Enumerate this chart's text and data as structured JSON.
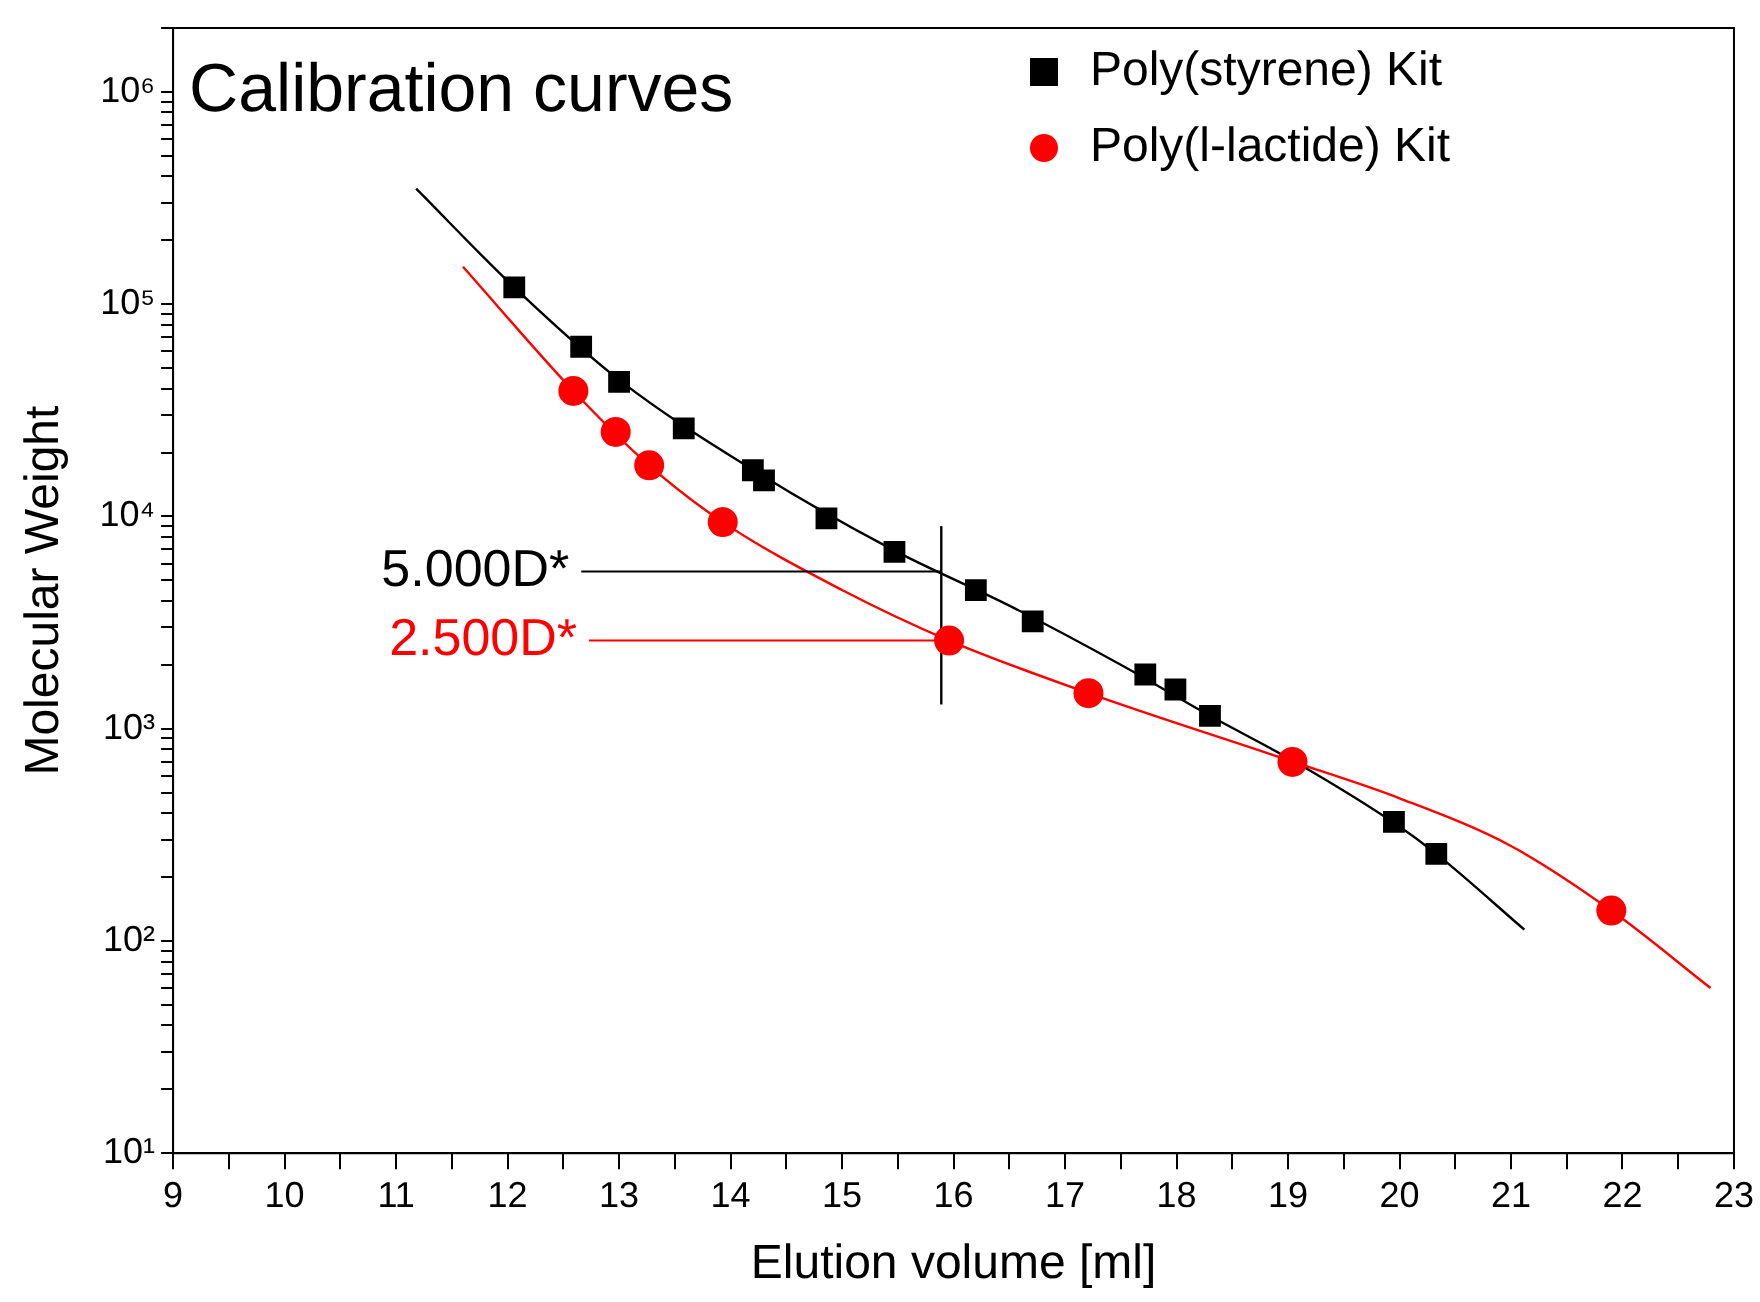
{
  "chart_data": {
    "type": "scatter",
    "title": "Calibration curves",
    "xlabel": "Elution volume [ml]",
    "ylabel": "Molecular Weight",
    "xlim": [
      9,
      23
    ],
    "xticks": [
      9,
      {
        "value": 9.5,
        "label": null
      },
      10,
      {
        "value": 10.5,
        "label": null
      },
      11,
      {
        "value": 11.5,
        "label": null
      },
      12,
      {
        "value": 12.5,
        "label": null
      },
      13,
      {
        "value": 13.5,
        "label": null
      },
      14,
      {
        "value": 14.5,
        "label": null
      },
      15,
      {
        "value": 15.5,
        "label": null
      },
      16,
      {
        "value": 16.5,
        "label": null
      },
      17,
      {
        "value": 17.5,
        "label": null
      },
      18,
      {
        "value": 18.5,
        "label": null
      },
      19,
      {
        "value": 19.5,
        "label": null
      },
      20,
      {
        "value": 20.5,
        "label": null
      },
      21,
      {
        "value": 21.5,
        "label": null
      },
      22,
      {
        "value": 22.5,
        "label": null
      },
      23
    ],
    "ylim": [
      10,
      2000000
    ],
    "yticks": [
      {
        "value": 10,
        "label": "10¹"
      },
      {
        "value": 20,
        "label": null
      },
      {
        "value": 30,
        "label": null
      },
      {
        "value": 40,
        "label": null
      },
      {
        "value": 50,
        "label": null
      },
      {
        "value": 60,
        "label": null
      },
      {
        "value": 70,
        "label": null
      },
      {
        "value": 80,
        "label": null
      },
      {
        "value": 90,
        "label": null
      },
      {
        "value": 100,
        "label": "10²"
      },
      {
        "value": 200,
        "label": null
      },
      {
        "value": 300,
        "label": null
      },
      {
        "value": 400,
        "label": null
      },
      {
        "value": 500,
        "label": null
      },
      {
        "value": 600,
        "label": null
      },
      {
        "value": 700,
        "label": null
      },
      {
        "value": 800,
        "label": null
      },
      {
        "value": 900,
        "label": null
      },
      {
        "value": 1000,
        "label": "10³"
      },
      {
        "value": 2000,
        "label": null
      },
      {
        "value": 3000,
        "label": null
      },
      {
        "value": 4000,
        "label": null
      },
      {
        "value": 5000,
        "label": null
      },
      {
        "value": 6000,
        "label": null
      },
      {
        "value": 7000,
        "label": null
      },
      {
        "value": 8000,
        "label": null
      },
      {
        "value": 9000,
        "label": null
      },
      {
        "value": 10000,
        "label": "10⁴"
      },
      {
        "value": 20000,
        "label": null
      },
      {
        "value": 30000,
        "label": null
      },
      {
        "value": 40000,
        "label": null
      },
      {
        "value": 50000,
        "label": null
      },
      {
        "value": 60000,
        "label": null
      },
      {
        "value": 70000,
        "label": null
      },
      {
        "value": 80000,
        "label": null
      },
      {
        "value": 90000,
        "label": null
      },
      {
        "value": 100000,
        "label": "10⁵"
      },
      {
        "value": 200000,
        "label": null
      },
      {
        "value": 300000,
        "label": null
      },
      {
        "value": 400000,
        "label": null
      },
      {
        "value": 500000,
        "label": null
      },
      {
        "value": 600000,
        "label": null
      },
      {
        "value": 700000,
        "label": null
      },
      {
        "value": 800000,
        "label": null
      },
      {
        "value": 900000,
        "label": null
      },
      {
        "value": 1000000,
        "label": "10⁶"
      },
      {
        "value": 2000000,
        "label": null
      }
    ],
    "log": "y",
    "grid": false,
    "legend": "top right",
    "series": [
      {
        "name": "Poly(styrene) Kit",
        "marker": "square",
        "color": "#000000",
        "x": [
          12.06,
          12.66,
          13.0,
          13.58,
          14.2,
          14.3,
          14.86,
          15.47,
          16.2,
          16.71,
          17.72,
          17.99,
          18.3,
          19.95,
          20.33
        ],
        "values": [
          120000,
          63000,
          43000,
          26000,
          16500,
          14800,
          9800,
          6800,
          4500,
          3200,
          1800,
          1530,
          1150,
          364,
          257
        ]
      },
      {
        "name": "Poly(l-lactide) Kit",
        "marker": "circle",
        "color": "#ff0000",
        "x": [
          12.59,
          12.97,
          13.27,
          13.93,
          15.96,
          17.21,
          19.04,
          21.9
        ],
        "values": [
          39000,
          25000,
          17400,
          9400,
          2600,
          1470,
          697,
          139
        ]
      },
      {
        "type": "line",
        "marker": "none",
        "color": "#000000",
        "x": [
          11.18,
          12.06,
          13.0,
          14.25,
          15.47,
          16.5,
          17.5,
          18.3,
          19.1,
          19.95,
          20.33,
          21.12
        ],
        "values": [
          350000,
          120000,
          44000,
          16000,
          6900,
          3800,
          2000,
          1150,
          680,
          360,
          257,
          113
        ]
      },
      {
        "type": "line",
        "marker": "none",
        "color": "#ff0000",
        "x": [
          11.6,
          12.59,
          13.27,
          13.93,
          15.0,
          15.96,
          17.21,
          19.04,
          20.0,
          21.0,
          21.9,
          22.79
        ],
        "values": [
          150000,
          39000,
          17400,
          9400,
          4500,
          2600,
          1470,
          700,
          470,
          280,
          139,
          60
        ]
      },
      {
        "type": "line",
        "marker": "none",
        "color": "#000000",
        "x": [
          15.89,
          15.89
        ],
        "values": [
          1300,
          9000
        ]
      }
    ],
    "annotations": [
      {
        "text": "5.000D*",
        "x": 15.89,
        "y": 5500
      },
      {
        "text": "2.500D*",
        "x": 15.96,
        "y": 2600
      }
    ]
  }
}
